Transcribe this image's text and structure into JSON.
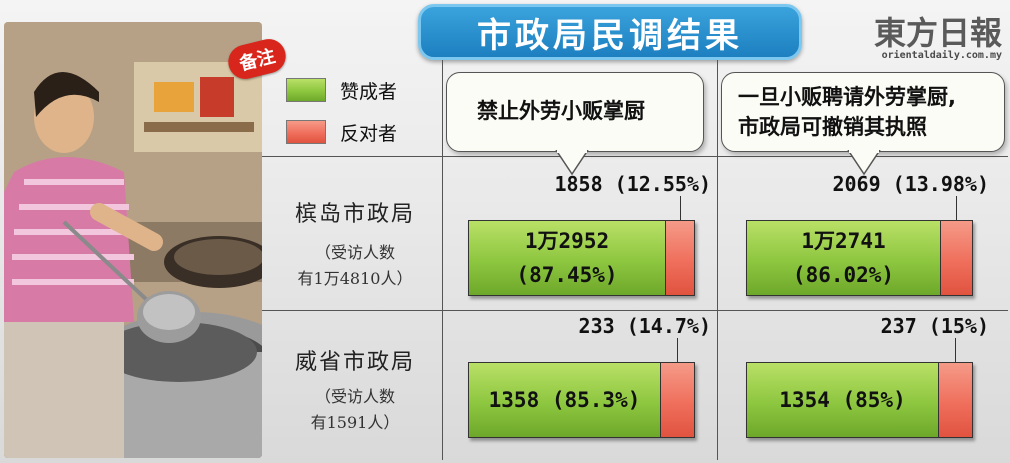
{
  "title": "市政局民调结果",
  "logo": {
    "name": "東方日報",
    "url": "orientaldaily.com.my"
  },
  "note_badge": "备注",
  "legend": [
    {
      "label": "赞成者",
      "color": "#8dc63f"
    },
    {
      "label": "反对者",
      "color": "#ef6f5c"
    }
  ],
  "questions": [
    {
      "line1": "禁止外劳小贩掌厨",
      "line2": ""
    },
    {
      "line1": "一旦小贩聘请外劳掌厨,",
      "line2": "市政局可撤销其执照"
    }
  ],
  "rows": [
    {
      "name": "槟岛市政局",
      "sub1": "（受访人数",
      "sub2": "有1万4810人）"
    },
    {
      "name": "威省市政局",
      "sub1": "（受访人数",
      "sub2": "有1591人）"
    }
  ],
  "chart_data": {
    "type": "bar",
    "orientation": "horizontal-stacked",
    "title": "市政局民调结果",
    "series_names": [
      "赞成者",
      "反对者"
    ],
    "cells": [
      {
        "council": "槟岛市政局",
        "question": "禁止外劳小贩掌厨",
        "favor": 12952,
        "favor_pct": 87.45,
        "favor_label_1": "1万2952",
        "favor_label_2": "(87.45%)",
        "oppose": 1858,
        "oppose_pct": 12.55,
        "oppose_label": "1858 (12.55%)"
      },
      {
        "council": "槟岛市政局",
        "question": "一旦小贩聘请外劳掌厨,市政局可撤销其执照",
        "favor": 12741,
        "favor_pct": 86.02,
        "favor_label_1": "1万2741",
        "favor_label_2": "(86.02%)",
        "oppose": 2069,
        "oppose_pct": 13.98,
        "oppose_label": "2069 (13.98%)"
      },
      {
        "council": "威省市政局",
        "question": "禁止外劳小贩掌厨",
        "favor": 1358,
        "favor_pct": 85.3,
        "favor_label_1": "1358 (85.3%)",
        "favor_label_2": "",
        "oppose": 233,
        "oppose_pct": 14.7,
        "oppose_label": "233 (14.7%)"
      },
      {
        "council": "威省市政局",
        "question": "一旦小贩聘请外劳掌厨,市政局可撤销其执照",
        "favor": 1354,
        "favor_pct": 85,
        "favor_label_1": "1354 (85%)",
        "favor_label_2": "",
        "oppose": 237,
        "oppose_pct": 15,
        "oppose_label": "237 (15%)"
      }
    ]
  }
}
